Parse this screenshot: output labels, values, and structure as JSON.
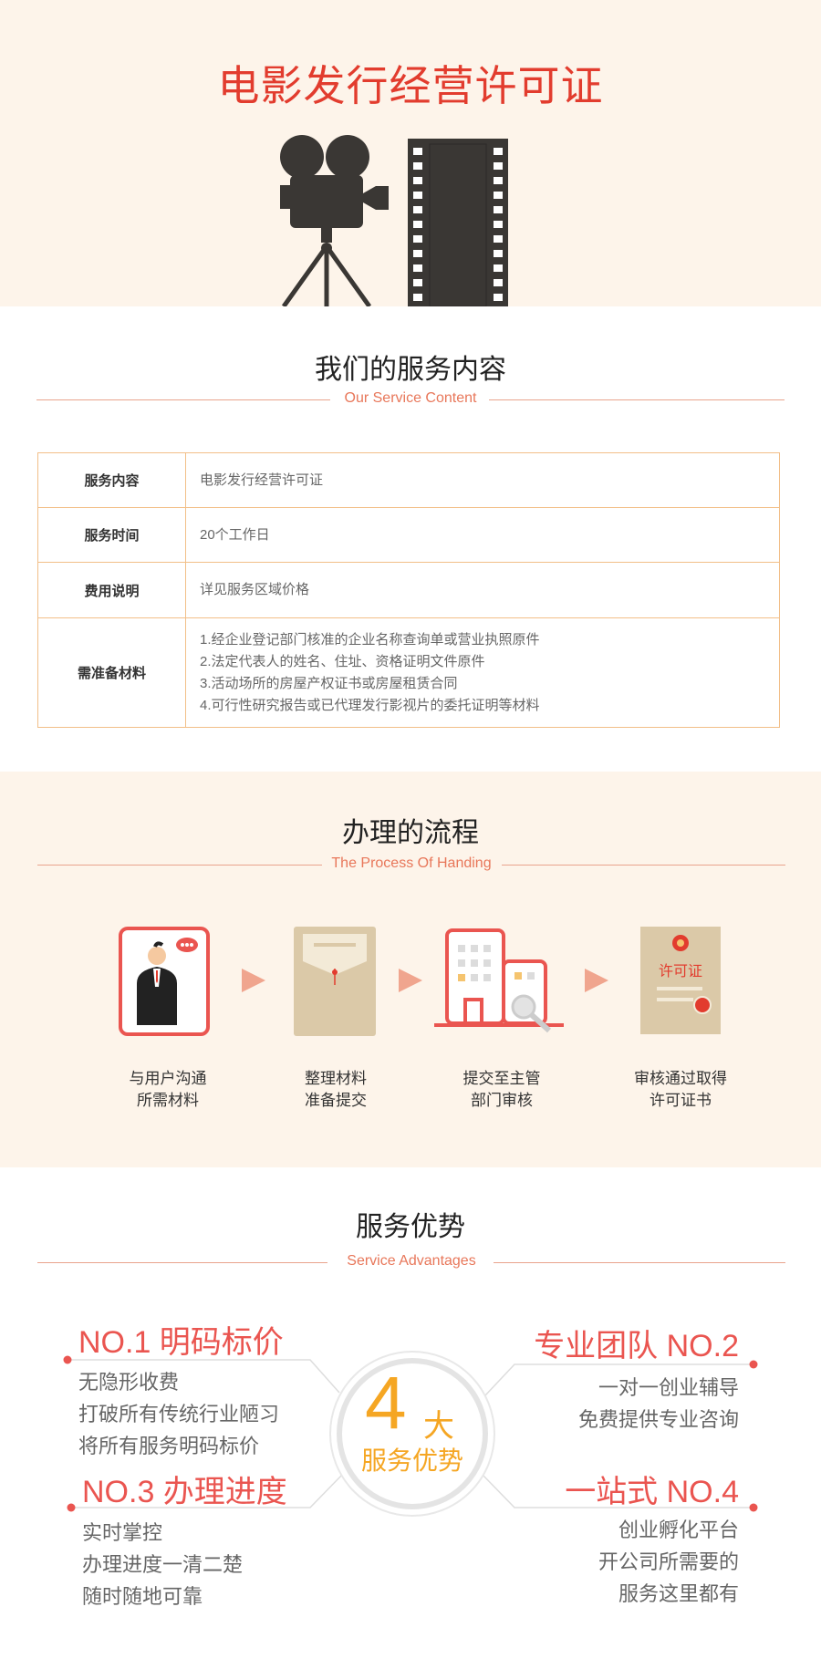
{
  "hero": {
    "title": "电影发行经营许可证"
  },
  "service_section": {
    "title": "我们的服务内容",
    "subtitle": "Our Service Content",
    "rows": [
      {
        "key": "服务内容",
        "value": [
          "电影发行经营许可证"
        ]
      },
      {
        "key": "服务时间",
        "value": [
          "20个工作日"
        ]
      },
      {
        "key": "费用说明",
        "value": [
          "详见服务区域价格"
        ]
      },
      {
        "key": "需准备材料",
        "value": [
          "1.经企业登记部门核准的企业名称查询单或营业执照原件",
          "2.法定代表人的姓名、住址、资格证明文件原件",
          "3.活动场所的房屋产权证书或房屋租赁合同",
          "4.可行性研究报告或已代理发行影视片的委托证明等材料"
        ]
      }
    ]
  },
  "process_section": {
    "title": "办理的流程",
    "subtitle": "The Process Of Handing",
    "steps": [
      {
        "line1": "与用户沟通",
        "line2": "所需材料",
        "icon": "person-icon"
      },
      {
        "line1": "整理材料",
        "line2": "准备提交",
        "icon": "envelope-icon"
      },
      {
        "line1": "提交至主管",
        "line2": "部门审核",
        "icon": "building-icon"
      },
      {
        "line1": "审核通过取得",
        "line2": "许可证书",
        "icon": "certificate-icon"
      }
    ],
    "certificate_text": "许可证"
  },
  "advantages_section": {
    "title": "服务优势",
    "subtitle": "Service Advantages",
    "center": {
      "number": "4",
      "big": "大",
      "label": "服务优势"
    },
    "items": [
      {
        "heading": "NO.1 明码标价",
        "lines": [
          "无隐形收费",
          "打破所有传统行业陋习",
          "将所有服务明码标价"
        ]
      },
      {
        "heading": "专业团队 NO.2",
        "lines": [
          "一对一创业辅导",
          "免费提供专业咨询"
        ]
      },
      {
        "heading": "NO.3 办理进度",
        "lines": [
          "实时掌控",
          "办理进度一清二楚",
          "随时随地可靠"
        ]
      },
      {
        "heading": "一站式 NO.4",
        "lines": [
          "创业孵化平台",
          "开公司所需要的",
          "服务这里都有"
        ]
      }
    ]
  },
  "colors": {
    "accent_red": "#e23c2e",
    "coral": "#ea5550",
    "peach_bg": "#fdf4ea",
    "orange": "#f5a623",
    "border": "#f2bf88"
  }
}
